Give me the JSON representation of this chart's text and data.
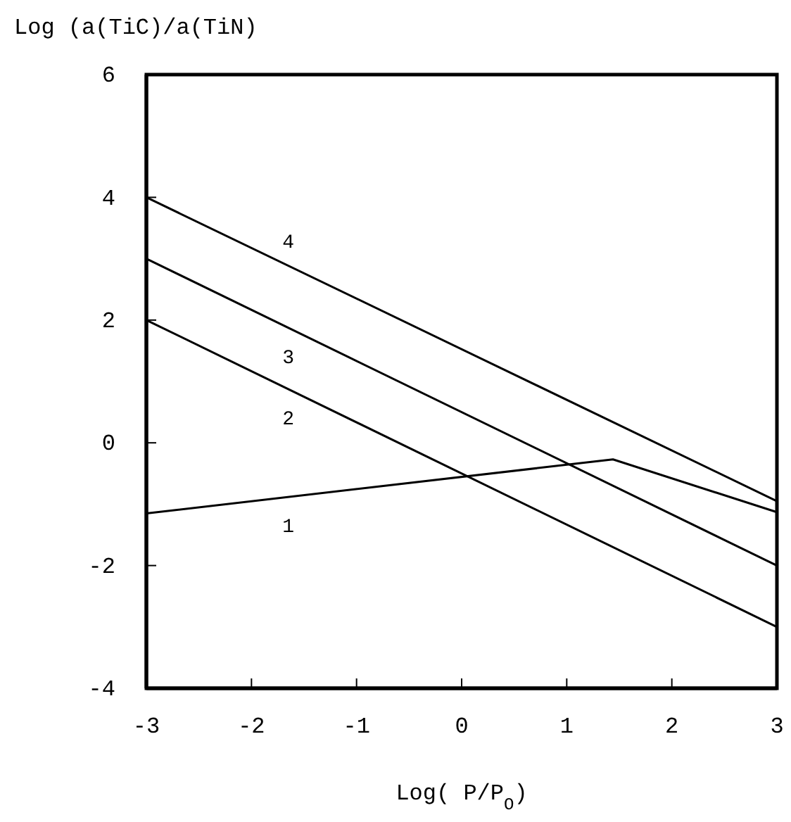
{
  "chart_data": {
    "type": "line",
    "ylabel": "Log (a(TiC)/a(TiN)",
    "xlabel": "Log( P/P$_{O}$)",
    "xlim": [
      -3,
      3
    ],
    "xticks": [
      -3,
      -2,
      -1,
      0,
      1,
      2,
      3
    ],
    "ylim": [
      -4,
      6
    ],
    "yticks": [
      -4,
      -2,
      0,
      2,
      4,
      6
    ],
    "marker": "none",
    "line_style": "solid",
    "series": [
      {
        "name": "1",
        "color": "#000000",
        "x": [
          -3,
          1.44,
          3
        ],
        "values": [
          -1.15,
          -0.27,
          -1.13
        ]
      },
      {
        "name": "2",
        "color": "#000000",
        "x": [
          -3,
          3
        ],
        "values": [
          2,
          -3
        ]
      },
      {
        "name": "3",
        "color": "#000000",
        "x": [
          -3,
          3
        ],
        "values": [
          3,
          -2
        ]
      },
      {
        "name": "4",
        "color": "#000000",
        "x": [
          -3,
          3
        ],
        "values": [
          4,
          -0.95
        ]
      }
    ]
  }
}
